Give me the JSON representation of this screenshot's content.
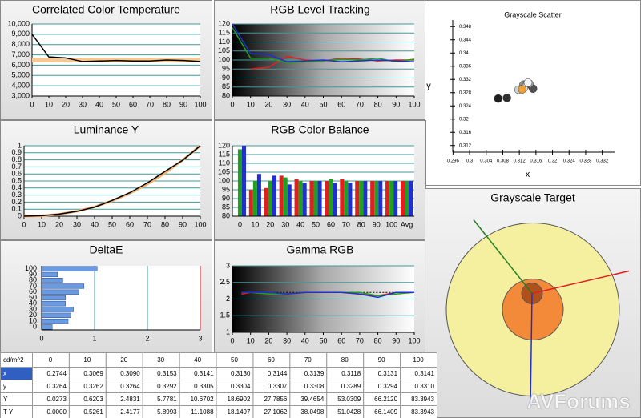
{
  "chart_data": [
    {
      "type": "line",
      "title": "Correlated Color Temperature",
      "x": [
        0,
        10,
        20,
        30,
        40,
        50,
        60,
        70,
        80,
        90,
        100
      ],
      "xlim": [
        0,
        100
      ],
      "xticks": [
        0,
        10,
        20,
        30,
        40,
        50,
        60,
        70,
        80,
        90,
        100
      ],
      "ylim": [
        3000,
        10000
      ],
      "yticks": [
        {
          "value": 3000,
          "label": "3,000"
        },
        {
          "value": 4000,
          "label": "4,000"
        },
        {
          "value": 5000,
          "label": "5,000"
        },
        {
          "value": 6000,
          "label": "6,000"
        },
        {
          "value": 7000,
          "label": "7,000"
        },
        {
          "value": 8000,
          "label": "8,000"
        },
        {
          "value": 9000,
          "label": "9,000"
        },
        {
          "value": 10000,
          "label": "10,000"
        }
      ],
      "grid": true,
      "series": [
        {
          "color": "#f5c896",
          "values": [
            6500,
            6500,
            6500,
            6500,
            6500,
            6500,
            6500,
            6500,
            6500,
            6500,
            6500
          ]
        },
        {
          "color": "#000000",
          "values": [
            9000,
            6800,
            6700,
            6350,
            6400,
            6450,
            6400,
            6400,
            6500,
            6450,
            6350
          ]
        }
      ]
    },
    {
      "type": "line",
      "title": "RGB Level Tracking",
      "x": [
        0,
        10,
        20,
        30,
        40,
        50,
        60,
        70,
        80,
        90,
        100
      ],
      "xlim": [
        0,
        100
      ],
      "xticks": [
        0,
        10,
        20,
        30,
        40,
        50,
        60,
        70,
        80,
        90,
        100
      ],
      "ylim": [
        80,
        120
      ],
      "yticks": [
        80,
        85,
        90,
        95,
        100,
        105,
        110,
        115,
        120
      ],
      "grid": true,
      "series": [
        {
          "color": "#e02020",
          "values": [
            null,
            95,
            96,
            102,
            100,
            99.5,
            101,
            100.5,
            99.5,
            100,
            100
          ]
        },
        {
          "color": "#20a020",
          "values": [
            118,
            101,
            101,
            98.5,
            99,
            99.5,
            100.5,
            100,
            101,
            99,
            100.5
          ]
        },
        {
          "color": "#2030d0",
          "values": [
            120,
            103.5,
            103,
            99,
            99.5,
            100,
            99,
            99.5,
            100,
            99.5,
            99
          ]
        }
      ]
    },
    {
      "type": "scatter",
      "title": "Grayscale Scatter",
      "xlabel": "x",
      "ylabel": "y",
      "xlim": [
        0.294,
        0.334
      ],
      "xticks": [
        0.296,
        0.3,
        0.304,
        0.308,
        0.312,
        0.316,
        0.32,
        0.324,
        0.328,
        0.332
      ],
      "ylim": [
        0.31,
        0.35
      ],
      "yticks": [
        0.312,
        0.316,
        0.32,
        0.324,
        0.328,
        0.332,
        0.336,
        0.34,
        0.344,
        0.348
      ],
      "series": [
        {
          "x": [
            0.3069,
            0.309,
            0.3153,
            0.3141,
            0.313,
            0.3144,
            0.3139,
            0.3118,
            0.3131,
            0.3141
          ],
          "values": [
            0.3262,
            0.3264,
            0.3292,
            0.3305,
            0.3304,
            0.3307,
            0.3308,
            0.3289,
            0.3294,
            0.331
          ],
          "colors": [
            "#202020",
            "#303030",
            "#505050",
            "#707070",
            "#909090",
            "#a0a0a0",
            "#c0c0c0",
            "#d0d0d0",
            "#e0e0e0",
            "#f4f4f4"
          ]
        },
        {
          "x": [
            0.3127
          ],
          "values": [
            0.329
          ],
          "color": "#f0a030"
        }
      ]
    },
    {
      "type": "line",
      "title": "Luminance Y",
      "x": [
        0,
        10,
        20,
        30,
        40,
        50,
        60,
        70,
        80,
        90,
        100
      ],
      "xlim": [
        0,
        100
      ],
      "xticks": [
        0,
        10,
        20,
        30,
        40,
        50,
        60,
        70,
        80,
        90,
        100
      ],
      "ylim": [
        0,
        1
      ],
      "yticks": [
        0,
        0.1,
        0.2,
        0.3,
        0.4,
        0.5,
        0.6,
        0.7,
        0.8,
        0.9,
        1
      ],
      "grid": true,
      "series": [
        {
          "color": "#f5b070",
          "values": [
            0,
            0.006,
            0.029,
            0.071,
            0.133,
            0.218,
            0.325,
            0.456,
            0.612,
            0.796,
            1
          ]
        },
        {
          "color": "#000000",
          "values": [
            0,
            0.007,
            0.03,
            0.069,
            0.128,
            0.224,
            0.334,
            0.473,
            0.636,
            0.794,
            1
          ]
        }
      ]
    },
    {
      "type": "bar",
      "title": "RGB Color Balance",
      "categories": [
        "0",
        "10",
        "20",
        "30",
        "40",
        "50",
        "60",
        "70",
        "80",
        "90",
        "100",
        "Avg"
      ],
      "ylim": [
        80,
        120
      ],
      "yticks": [
        80,
        85,
        90,
        95,
        100,
        105,
        110,
        115,
        120
      ],
      "grid": true,
      "series": [
        {
          "color": "#e02020",
          "values": [
            null,
            95,
            96,
            103,
            101,
            100,
            100,
            101,
            100,
            100,
            100,
            100
          ]
        },
        {
          "color": "#20a020",
          "values": [
            118,
            100,
            100,
            102,
            100,
            100,
            101,
            100,
            100,
            100,
            100,
            100
          ]
        },
        {
          "color": "#2030d0",
          "values": [
            120,
            104,
            103,
            98,
            99,
            100,
            99,
            99,
            100,
            100,
            100,
            100
          ]
        }
      ]
    },
    {
      "type": "hbar",
      "title": "DeltaE",
      "categories": [
        "0",
        "10",
        "20",
        "30",
        "40",
        "50",
        "60",
        "70",
        "80",
        "90",
        "100"
      ],
      "values": [
        0.2,
        0.5,
        0.55,
        0.6,
        0.45,
        0.45,
        0.7,
        0.8,
        0.4,
        0.3,
        1.05
      ],
      "color": "#6a9ae0",
      "xlim": [
        0,
        3
      ],
      "xticks": [
        0,
        1,
        2,
        3
      ]
    },
    {
      "type": "line",
      "title": "Gamma RGB",
      "x": [
        5,
        10,
        20,
        30,
        40,
        50,
        60,
        70,
        80,
        90,
        100
      ],
      "xlim": [
        0,
        100
      ],
      "xticks": [
        0,
        10,
        20,
        30,
        40,
        50,
        60,
        70,
        80,
        90,
        100
      ],
      "ylim": [
        1,
        3
      ],
      "yticks": [
        1,
        1.5,
        2,
        2.5,
        3
      ],
      "grid": true,
      "series": [
        {
          "color": "#000000",
          "values": [
            2.2,
            2.2,
            2.2,
            2.2,
            2.2,
            2.2,
            2.2,
            2.2,
            2.2,
            2.2,
            2.2
          ]
        },
        {
          "color": "#e02020",
          "values": [
            2.15,
            2.2,
            2.2,
            2.15,
            2.2,
            2.2,
            2.2,
            2.15,
            2.1,
            2.2,
            2.2
          ]
        },
        {
          "color": "#20a020",
          "values": [
            2.2,
            2.2,
            2.15,
            2.15,
            2.2,
            2.2,
            2.2,
            2.2,
            2.1,
            2.15,
            2.2
          ]
        },
        {
          "color": "#2030d0",
          "values": [
            2.2,
            2.2,
            2.2,
            2.15,
            2.2,
            2.2,
            2.2,
            2.15,
            2.05,
            2.2,
            2.2
          ]
        }
      ]
    },
    {
      "type": "target",
      "title": "Grayscale Target"
    }
  ],
  "table": {
    "header": [
      "cd/m^2",
      "0",
      "10",
      "20",
      "30",
      "40",
      "50",
      "60",
      "70",
      "80",
      "90",
      "100"
    ],
    "rows": [
      [
        "x",
        "0.2744",
        "0.3069",
        "0.3090",
        "0.3153",
        "0.3141",
        "0.3130",
        "0.3144",
        "0.3139",
        "0.3118",
        "0.3131",
        "0.3141"
      ],
      [
        "y",
        "0.3264",
        "0.3262",
        "0.3264",
        "0.3292",
        "0.3305",
        "0.3304",
        "0.3307",
        "0.3308",
        "0.3289",
        "0.3294",
        "0.3310"
      ],
      [
        "Y",
        "0.0273",
        "0.6203",
        "2.4831",
        "5.7781",
        "10.6702",
        "18.6902",
        "27.7856",
        "39.4654",
        "53.0309",
        "66.2120",
        "83.3943"
      ],
      [
        "T Y",
        "0.0000",
        "0.5261",
        "2.4177",
        "5.8993",
        "11.1088",
        "18.1497",
        "27.1062",
        "38.0498",
        "51.0428",
        "66.1409",
        "83.3943"
      ]
    ]
  },
  "watermark": "AVForums"
}
